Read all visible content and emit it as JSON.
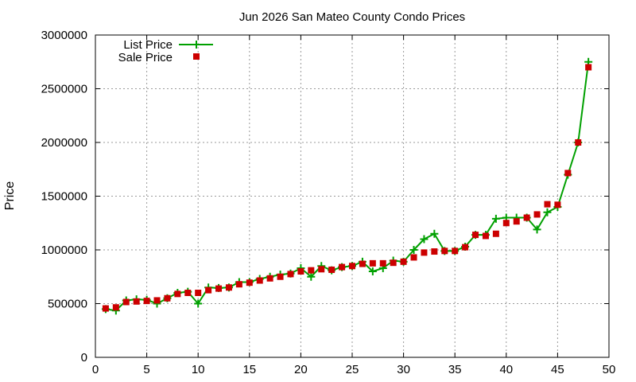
{
  "chart_data": {
    "type": "line",
    "title": "Jun 2026 San Mateo County Condo Prices",
    "xlabel": "",
    "ylabel": "Price",
    "xlim": [
      0,
      50
    ],
    "ylim": [
      0,
      3000000
    ],
    "x_ticks": [
      0,
      5,
      10,
      15,
      20,
      25,
      30,
      35,
      40,
      45,
      50
    ],
    "y_ticks": [
      0,
      500000,
      1000000,
      1500000,
      2000000,
      2500000,
      3000000
    ],
    "grid": true,
    "legend_position": "top-left",
    "series": [
      {
        "name": "List Price",
        "style": "line-plus",
        "color": "#00a000",
        "x": [
          1,
          2,
          3,
          4,
          5,
          6,
          7,
          8,
          9,
          10,
          11,
          12,
          13,
          14,
          15,
          16,
          17,
          18,
          19,
          20,
          21,
          22,
          23,
          24,
          25,
          26,
          27,
          28,
          29,
          30,
          31,
          32,
          33,
          34,
          35,
          36,
          37,
          38,
          39,
          40,
          41,
          42,
          43,
          44,
          45,
          46,
          47,
          48
        ],
        "values": [
          449000,
          435000,
          530000,
          540000,
          535000,
          500000,
          550000,
          600000,
          610000,
          500000,
          650000,
          645000,
          650000,
          700000,
          700000,
          730000,
          750000,
          770000,
          780000,
          830000,
          750000,
          850000,
          810000,
          840000,
          850000,
          890000,
          800000,
          830000,
          900000,
          890000,
          1000000,
          1100000,
          1150000,
          990000,
          990000,
          1030000,
          1140000,
          1140000,
          1290000,
          1300000,
          1300000,
          1300000,
          1190000,
          1350000,
          1400000,
          1700000,
          2000000,
          2750000
        ]
      },
      {
        "name": "Sale Price",
        "style": "square-points",
        "color": "#cc0000",
        "x": [
          1,
          2,
          3,
          4,
          5,
          6,
          7,
          8,
          9,
          10,
          11,
          12,
          13,
          14,
          15,
          16,
          17,
          18,
          19,
          20,
          21,
          22,
          23,
          24,
          25,
          26,
          27,
          28,
          29,
          30,
          31,
          32,
          33,
          34,
          35,
          36,
          37,
          38,
          39,
          40,
          41,
          42,
          43,
          44,
          45,
          46,
          47,
          48
        ],
        "values": [
          455000,
          465000,
          515000,
          520000,
          525000,
          530000,
          550000,
          590000,
          600000,
          600000,
          625000,
          640000,
          650000,
          680000,
          695000,
          715000,
          735000,
          750000,
          775000,
          800000,
          810000,
          820000,
          815000,
          840000,
          850000,
          870000,
          875000,
          875000,
          880000,
          890000,
          930000,
          975000,
          985000,
          990000,
          990000,
          1025000,
          1140000,
          1130000,
          1150000,
          1250000,
          1265000,
          1300000,
          1330000,
          1425000,
          1420000,
          1715000,
          2000000,
          2700000
        ]
      }
    ]
  }
}
